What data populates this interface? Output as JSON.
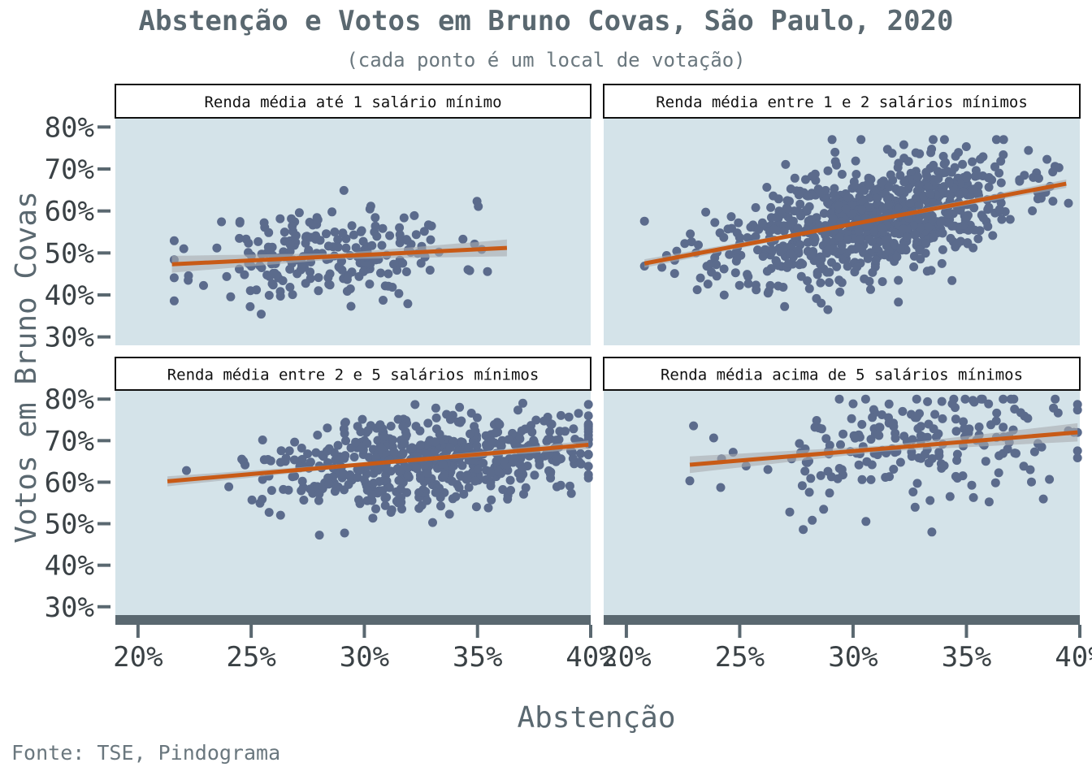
{
  "title": "Abstenção e Votos em Bruno Covas, São Paulo, 2020",
  "subtitle": "(cada ponto é um local de votação)",
  "caption": "Fonte: TSE, Pindograma",
  "colors": {
    "panel_bg": "#d4e3e9",
    "point": "#5b6b8c",
    "trend": "#c85a16",
    "ribbon": "#a8acb0",
    "text": "#5a6870",
    "strip_bg": "#ffffff",
    "strip_border": "#111111"
  },
  "chart_data": {
    "type": "scatter",
    "title": "Abstenção e Votos em Bruno Covas, São Paulo, 2020",
    "subtitle": "(cada ponto é um local de votação)",
    "xlabel": "Abstenção",
    "ylabel": "Votos em Bruno Covas",
    "xlim": [
      0.19,
      0.4
    ],
    "ylim": [
      0.28,
      0.82
    ],
    "x_ticks": [
      0.2,
      0.25,
      0.3,
      0.35,
      0.4
    ],
    "x_tick_labels": [
      "20%",
      "25%",
      "30%",
      "35%",
      "40%"
    ],
    "y_ticks": [
      0.3,
      0.4,
      0.5,
      0.6,
      0.7,
      0.8
    ],
    "y_tick_labels": [
      "30%",
      "40%",
      "50%",
      "60%",
      "70%",
      "80%"
    ],
    "grid": false,
    "trend": "linear fit with confidence band",
    "panels": [
      {
        "label": "Renda média até 1 salário mínimo",
        "trend_line": {
          "x": [
            0.215,
            0.363
          ],
          "y": [
            0.473,
            0.512
          ]
        },
        "ribbon_halfwidth": [
          0.02,
          0.007,
          0.02
        ],
        "points": {
          "seed": 11,
          "n": 230,
          "x_range": [
            0.216,
            0.363
          ],
          "x_center": 0.285,
          "x_spread": 0.028,
          "y_slope": 0.25,
          "y_base": 0.48,
          "x_base": 0.215,
          "y_spread": 0.055,
          "y_clip": [
            0.32,
            0.74
          ]
        }
      },
      {
        "label": "Renda média entre 1 e 2 salários mínimos",
        "trend_line": {
          "x": [
            0.208,
            0.394
          ],
          "y": [
            0.475,
            0.665
          ]
        },
        "ribbon_halfwidth": [
          0.01,
          0.003,
          0.01
        ],
        "points": {
          "seed": 23,
          "n": 820,
          "x_range": [
            0.208,
            0.395
          ],
          "x_center": 0.305,
          "x_spread": 0.033,
          "y_slope": 1.02,
          "y_base": 0.475,
          "x_base": 0.208,
          "y_spread": 0.065,
          "y_clip": [
            0.365,
            0.77
          ]
        }
      },
      {
        "label": "Renda média entre 2 e 5 salários mínimos",
        "trend_line": {
          "x": [
            0.213,
            0.399
          ],
          "y": [
            0.602,
            0.69
          ]
        },
        "ribbon_halfwidth": [
          0.012,
          0.003,
          0.01
        ],
        "points": {
          "seed": 37,
          "n": 560,
          "x_range": [
            0.213,
            0.399
          ],
          "x_center": 0.33,
          "x_spread": 0.035,
          "y_slope": 0.47,
          "y_base": 0.602,
          "x_base": 0.213,
          "y_spread": 0.055,
          "y_clip": [
            0.36,
            0.79
          ]
        }
      },
      {
        "label": "Renda média acima de 5 salários mínimos",
        "trend_line": {
          "x": [
            0.228,
            0.399
          ],
          "y": [
            0.642,
            0.72
          ]
        },
        "ribbon_halfwidth": [
          0.02,
          0.007,
          0.022
        ],
        "points": {
          "seed": 53,
          "n": 210,
          "x_range": [
            0.228,
            0.399
          ],
          "x_center": 0.33,
          "x_spread": 0.04,
          "y_slope": 0.46,
          "y_base": 0.642,
          "x_base": 0.228,
          "y_spread": 0.075,
          "y_clip": [
            0.48,
            0.8
          ]
        }
      }
    ]
  }
}
